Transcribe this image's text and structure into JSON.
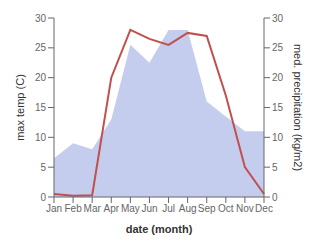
{
  "chart_data": {
    "type": "line",
    "xlabel": "date (month)",
    "ylabel": "max temp (C)",
    "y2label": "med. precipitation (kg/m2)",
    "categories": [
      "Jan",
      "Feb",
      "Mar",
      "Apr",
      "May",
      "Jun",
      "Jul",
      "Aug",
      "Sep",
      "Oct",
      "Nov",
      "Dec"
    ],
    "series": [
      {
        "type": "area",
        "color": "#b0bce8",
        "axis": "y2",
        "values": [
          6.5,
          9.0,
          8.0,
          13.0,
          25.5,
          22.5,
          28.0,
          28.0,
          16.0,
          13.5,
          11.0,
          11.0
        ]
      },
      {
        "type": "line",
        "color": "#c0504d",
        "values": [
          0.5,
          0.2,
          0.3,
          20.0,
          28.0,
          26.5,
          25.5,
          27.5,
          27.0,
          17.0,
          5.0,
          0.5
        ]
      }
    ],
    "ylim": [
      0,
      30
    ],
    "yticks": [
      0,
      5,
      10,
      15,
      20,
      25,
      30
    ],
    "y2lim": [
      0,
      30
    ],
    "y2ticks": [
      0,
      5,
      10,
      15,
      20,
      25,
      30
    ],
    "grid": false
  }
}
